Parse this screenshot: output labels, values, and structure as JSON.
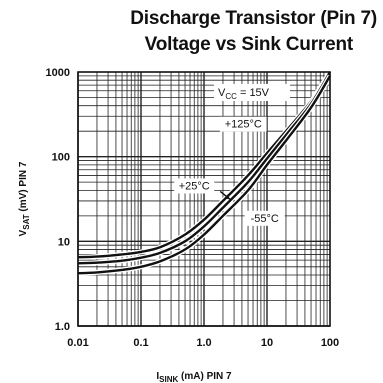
{
  "chart_data": {
    "type": "line",
    "title_line1": "Discharge Transistor (Pin 7)",
    "title_line2": "Voltage vs Sink Current",
    "xlabel": {
      "main": "I",
      "sub": "SINK",
      "rest": " (mA) PIN 7"
    },
    "ylabel": {
      "main": "V",
      "sub": "SAT",
      "rest": " (mV) PIN 7"
    },
    "x_scale": "log",
    "y_scale": "log",
    "xlim": [
      0.01,
      100
    ],
    "ylim": [
      1,
      1000
    ],
    "x_ticks": [
      {
        "value": 0.01,
        "label": "0.01"
      },
      {
        "value": 0.1,
        "label": "0.1"
      },
      {
        "value": 1,
        "label": "1.0"
      },
      {
        "value": 10,
        "label": "10"
      },
      {
        "value": 100,
        "label": "100"
      }
    ],
    "y_ticks": [
      {
        "value": 1,
        "label": "1.0"
      },
      {
        "value": 10,
        "label": "10"
      },
      {
        "value": 100,
        "label": "100"
      },
      {
        "value": 1000,
        "label": "1000"
      }
    ],
    "grid": true,
    "condition": {
      "text": "V",
      "sub": "CC",
      "rest": " = 15V"
    },
    "series": [
      {
        "name": "+125°C",
        "x": [
          0.01,
          0.02,
          0.05,
          0.1,
          0.2,
          0.5,
          1,
          2,
          5,
          10,
          20,
          50,
          100
        ],
        "y": [
          6.5,
          6.6,
          7,
          7.5,
          8.5,
          12,
          18,
          30,
          60,
          110,
          200,
          450,
          1000
        ]
      },
      {
        "name": "+25°C",
        "x": [
          0.01,
          0.02,
          0.05,
          0.1,
          0.2,
          0.5,
          1,
          2,
          5,
          10,
          20,
          50,
          100
        ],
        "y": [
          5.5,
          5.6,
          5.9,
          6.4,
          7.3,
          10,
          15,
          25,
          50,
          95,
          180,
          420,
          1000
        ]
      },
      {
        "name": "-55°C",
        "x": [
          0.01,
          0.02,
          0.05,
          0.1,
          0.2,
          0.5,
          1,
          2,
          5,
          10,
          20,
          50,
          100
        ],
        "y": [
          4.2,
          4.3,
          4.6,
          5,
          5.8,
          8,
          12,
          20,
          40,
          80,
          155,
          380,
          900
        ]
      }
    ],
    "annotations": [
      {
        "text": "+125°C",
        "x": 4.2,
        "y": 220
      },
      {
        "text": "+25°C",
        "x": 0.7,
        "y": 41
      },
      {
        "text": "-55°C",
        "x": 9.2,
        "y": 17
      }
    ]
  }
}
